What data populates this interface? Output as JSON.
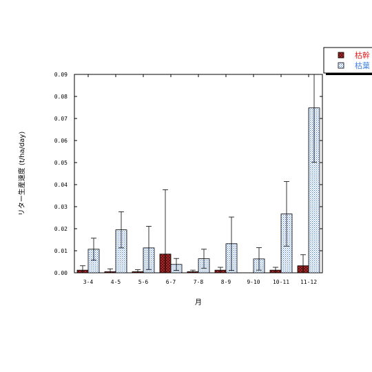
{
  "chart_data": {
    "type": "bar",
    "xlabel": "月",
    "ylabel": "リター生産速度 (t/ha/day)",
    "ylim": [
      0,
      0.09
    ],
    "yticks": [
      "0.00",
      "0.01",
      "0.02",
      "0.03",
      "0.04",
      "0.05",
      "0.06",
      "0.07",
      "0.08",
      "0.09"
    ],
    "categories": [
      "3-4",
      "4-5",
      "5-6",
      "6-7",
      "7-8",
      "8-9",
      "9-10",
      "10-11",
      "11-12"
    ],
    "grid": false,
    "legend_position": "top-right",
    "series": [
      {
        "name": "枯幹",
        "color": "#e02020",
        "pattern": "crosshatch",
        "values": [
          0.0012,
          0.0005,
          0.0005,
          0.0085,
          0.0005,
          0.0012,
          0.0,
          0.0012,
          0.0032
        ],
        "error_upper": [
          0.0032,
          0.0018,
          0.0014,
          0.0377,
          0.0012,
          0.0025,
          0.0,
          0.0025,
          0.0082
        ],
        "error_lower": [
          0.0,
          0.0,
          0.0,
          0.0,
          0.0,
          0.0,
          0.0,
          0.0,
          0.0
        ]
      },
      {
        "name": "枯葉",
        "color": "#4080e0",
        "pattern": "dotted",
        "values": [
          0.0107,
          0.0195,
          0.0113,
          0.0038,
          0.0064,
          0.0132,
          0.0063,
          0.0267,
          0.0748
        ],
        "error_upper": [
          0.0157,
          0.0277,
          0.0211,
          0.0065,
          0.0107,
          0.0253,
          0.0114,
          0.0414,
          0.09
        ],
        "error_lower": [
          0.0057,
          0.0113,
          0.0015,
          0.0011,
          0.0021,
          0.0011,
          0.0012,
          0.0121,
          0.0501
        ]
      }
    ]
  }
}
